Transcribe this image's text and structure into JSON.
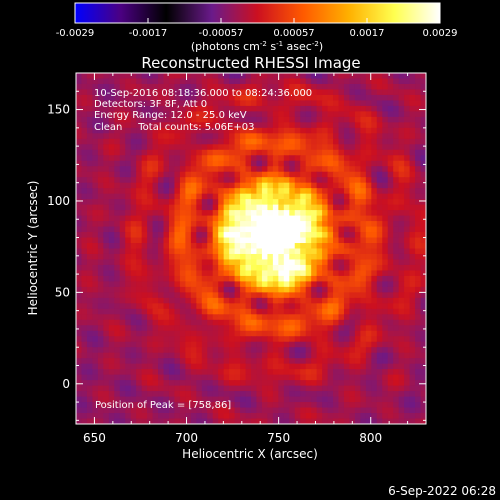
{
  "chart_data": {
    "type": "heatmap",
    "title": "Reconstructed RHESSI Image",
    "xlabel": "Heliocentric X (arcsec)",
    "ylabel": "Heliocentric Y (arcsec)",
    "xlim": [
      640,
      830
    ],
    "ylim": [
      -22,
      170
    ],
    "xticks": [
      650,
      700,
      750,
      800
    ],
    "yticks": [
      0,
      50,
      100,
      150
    ],
    "grid": false,
    "colorbar": {
      "position": "top",
      "min": -0.0029,
      "max": 0.0029,
      "ticks": [
        "-0.0029",
        "-0.0017",
        "-0.00057",
        "0.00057",
        "0.0017",
        "0.0029"
      ],
      "units_main": "(photons cm",
      "units_exp1": "-2",
      "units_mid1": " s",
      "units_exp2": "-1",
      "units_mid2": " asec",
      "units_exp3": "-2",
      "units_end": ")",
      "colors": [
        "#0000ff",
        "#4b0082",
        "#000000",
        "#6a1a8a",
        "#cc1020",
        "#ff5a00",
        "#ffb000",
        "#ffff50",
        "#ffffff"
      ]
    },
    "annotations": [
      "10-Sep-2016 08:18:36.000 to 08:24:36.000",
      "Detectors: 3F 8F, Att 0",
      "Energy Range: 12.0 - 25.0 keV",
      "Clean     Total counts: 5.06E+03"
    ],
    "peak_label": "Position of Peak = [758,86]",
    "peak": [
      758,
      86
    ],
    "background_value": -0.0004,
    "sources": [
      {
        "x": 758,
        "y": 86,
        "amp": 0.0029,
        "sigma": 8
      },
      {
        "x": 742,
        "y": 90,
        "amp": 0.0023,
        "sigma": 10
      },
      {
        "x": 752,
        "y": 66,
        "amp": 0.0022,
        "sigma": 9
      },
      {
        "x": 733,
        "y": 78,
        "amp": 0.0018,
        "sigma": 10
      }
    ],
    "halo": {
      "x": 748,
      "y": 82,
      "amp": 0.0013,
      "sigma": 42
    },
    "ripple": {
      "amp": 0.0011,
      "period": 26,
      "spokes": 14,
      "extent": 70
    }
  },
  "footer": {
    "timestamp": "6-Sep-2022 06:28"
  }
}
